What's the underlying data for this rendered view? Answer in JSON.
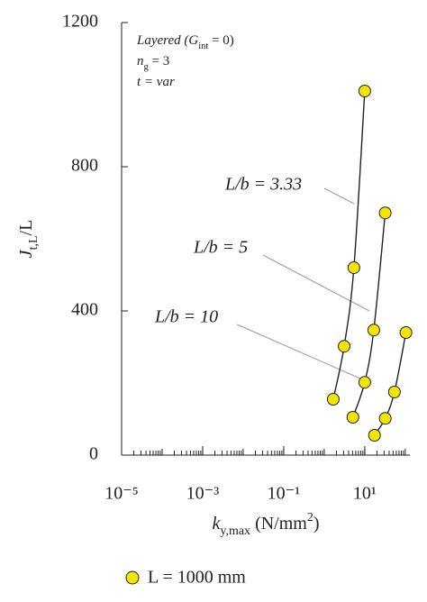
{
  "chart_data": {
    "type": "scatter",
    "note": [
      {
        "text": "Layered (G",
        "sub": "int",
        "after": " = 0)"
      },
      {
        "text": "n",
        "sub": "g",
        "after": " = 3"
      },
      {
        "text": "t = var"
      }
    ],
    "ylabel": {
      "text": "J",
      "sub": "t,L",
      "after": "/L"
    },
    "xlabel": {
      "text": "k",
      "sub": "y,max",
      "after": " (N/mm",
      "sup": "2",
      "end": ")"
    },
    "legend_label": "L = 1000 mm",
    "marker_color": "#f2e600",
    "xscale": "log",
    "xlim": [
      1e-05,
      130
    ],
    "ylim": [
      0,
      1200
    ],
    "xticks": [
      {
        "value": 1e-05,
        "label": "10⁻⁵"
      },
      {
        "value": 0.001,
        "label": "10⁻³"
      },
      {
        "value": 0.1,
        "label": "10⁻¹"
      },
      {
        "value": 10,
        "label": "10¹"
      }
    ],
    "yticks": [
      0,
      400,
      800,
      1200
    ],
    "series": [
      {
        "name": "L/b = 3.33",
        "x": [
          1.67,
          3.1,
          5.4,
          10
        ],
        "values": [
          155,
          302,
          520,
          1010
        ]
      },
      {
        "name": "L/b = 5",
        "x": [
          5.1,
          10,
          16.7,
          32
        ],
        "values": [
          105,
          202,
          347,
          672
        ]
      },
      {
        "name": "L/b = 10",
        "x": [
          17.4,
          32,
          54,
          104
        ],
        "values": [
          55,
          102,
          175,
          340
        ]
      }
    ]
  }
}
